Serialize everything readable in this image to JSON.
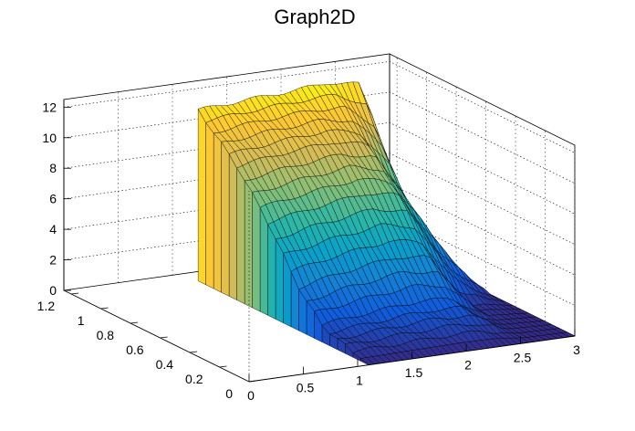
{
  "chart_data": {
    "type": "surface",
    "title": "Graph2D",
    "x": {
      "range": [
        0,
        3
      ],
      "ticks": [
        0,
        0.5,
        1,
        1.5,
        2,
        2.5,
        3
      ],
      "tick_labels": [
        "0",
        "0.5",
        "1",
        "1.5",
        "2",
        "2.5",
        "3"
      ]
    },
    "y": {
      "range": [
        0,
        1.25
      ],
      "ticks": [
        0,
        0.2,
        0.4,
        0.6,
        0.8,
        1,
        1.2
      ],
      "tick_labels": [
        "0",
        "0.2",
        "0.4",
        "0.6",
        "0.8",
        "1",
        "1.2"
      ]
    },
    "z": {
      "range": [
        0,
        12.5
      ],
      "ticks": [
        0,
        2,
        4,
        6,
        8,
        10,
        12
      ],
      "tick_labels": [
        "0",
        "2",
        "4",
        "6",
        "8",
        "10",
        "12"
      ]
    },
    "surface": {
      "x_samples": [
        1.1,
        1.5,
        2.0,
        2.3,
        2.6,
        3.0
      ],
      "y_samples": [
        0.0,
        0.3,
        0.45,
        0.7,
        0.9,
        1.15
      ],
      "z": [
        [
          0.0,
          0.0,
          0.0,
          0.0,
          0.0,
          0.0
        ],
        [
          1.0,
          1.3,
          1.6,
          1.5,
          0.2,
          0.0
        ],
        [
          2.5,
          3.1,
          3.6,
          3.3,
          0.6,
          0.0
        ],
        [
          6.4,
          6.9,
          7.4,
          7.0,
          4.0,
          0.0
        ],
        [
          8.9,
          9.3,
          9.6,
          9.1,
          6.0,
          0.0
        ],
        [
          11.2,
          11.4,
          11.6,
          11.8,
          11.4,
          0.0
        ]
      ]
    },
    "colormap": [
      "#352a87",
      "#0f5cdd",
      "#1481d6",
      "#06a4ca",
      "#2eb7a4",
      "#87bf77",
      "#d1bb59",
      "#fec832",
      "#f9fb0e"
    ],
    "grid": true
  }
}
